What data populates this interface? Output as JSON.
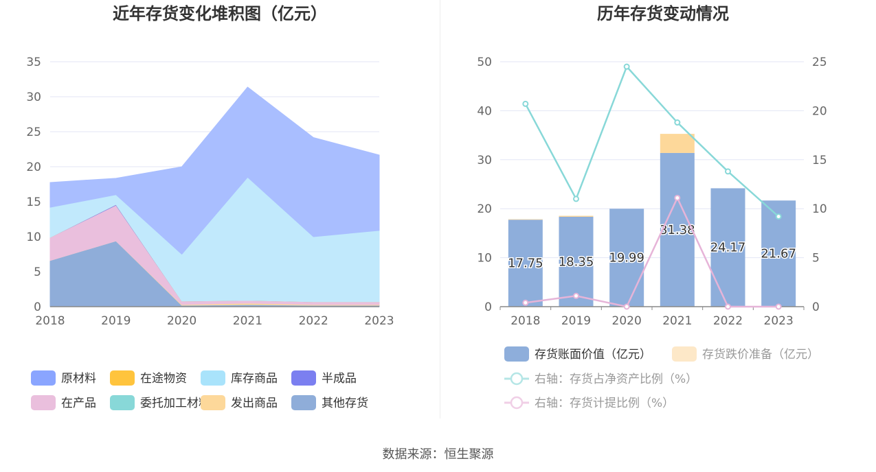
{
  "left_chart": {
    "title": "近年存货变化堆积图（亿元）",
    "chart_data": {
      "type": "area",
      "stacked": true,
      "x": [
        "2018",
        "2019",
        "2020",
        "2021",
        "2022",
        "2023"
      ],
      "ylim": [
        0,
        35
      ],
      "yticks": [
        0,
        5,
        10,
        15,
        20,
        25,
        30,
        35
      ],
      "series": [
        {
          "name": "其他存货",
          "color": "#8fadd9",
          "values": [
            6.6,
            9.4,
            0.2,
            0.3,
            0.2,
            0.2
          ]
        },
        {
          "name": "委托加工材料",
          "color": "#88d8d8",
          "values": [
            0,
            0,
            0,
            0,
            0,
            0
          ]
        },
        {
          "name": "发出商品",
          "color": "#fdd89a",
          "values": [
            0,
            0,
            0.1,
            0.2,
            0.1,
            0.1
          ]
        },
        {
          "name": "在产品",
          "color": "#eabfdd",
          "values": [
            3.3,
            5.1,
            0.5,
            0.4,
            0.4,
            0.4
          ]
        },
        {
          "name": "半成品",
          "color": "#7b7ff0",
          "values": [
            0,
            0.1,
            0,
            0,
            0,
            0
          ]
        },
        {
          "name": "在途物资",
          "color": "#ffc43d",
          "values": [
            0,
            0,
            0,
            0,
            0,
            0
          ]
        },
        {
          "name": "库存商品",
          "color": "#c1e9fc",
          "values": [
            4.3,
            1.4,
            6.7,
            17.6,
            9.3,
            10.2
          ]
        },
        {
          "name": "原材料",
          "color": "#a9beff",
          "values": [
            3.55,
            2.35,
            12.49,
            12.88,
            14.17,
            10.77
          ]
        }
      ],
      "legend": [
        {
          "label": "原材料",
          "color": "#8aa5ff"
        },
        {
          "label": "在途物资",
          "color": "#ffc43d"
        },
        {
          "label": "库存商品",
          "color": "#a9e3fb"
        },
        {
          "label": "半成品",
          "color": "#7b7ff0"
        },
        {
          "label": "在产品",
          "color": "#eabfdd"
        },
        {
          "label": "委托加工材料",
          "color": "#88d8d8"
        },
        {
          "label": "发出商品",
          "color": "#fdd89a"
        },
        {
          "label": "其他存货",
          "color": "#8fadd9"
        }
      ],
      "legend_position": "bottom"
    }
  },
  "right_chart": {
    "title": "历年存货变动情况",
    "chart_data": {
      "type": "bar",
      "categories": [
        "2018",
        "2019",
        "2020",
        "2021",
        "2022",
        "2023"
      ],
      "ylim": [
        0,
        50
      ],
      "yticks": [
        0,
        10,
        20,
        30,
        40,
        50
      ],
      "y2lim": [
        0,
        25
      ],
      "y2ticks": [
        0,
        5,
        10,
        15,
        20,
        25
      ],
      "series": [
        {
          "name": "存货账面价值（亿元）",
          "type": "bar",
          "stack": "a",
          "color": "#8eaedb",
          "values": [
            17.75,
            18.35,
            19.99,
            31.38,
            24.17,
            21.67
          ],
          "labels": [
            "17.75",
            "18.35",
            "19.99",
            "31.38",
            "24.17",
            "21.67"
          ]
        },
        {
          "name": "存货跌价准备（亿元）",
          "type": "bar",
          "stack": "a",
          "color": "#fdd89a",
          "values": [
            0.1,
            0.2,
            0.0,
            3.9,
            0.0,
            0.0
          ]
        },
        {
          "name": "右轴：存货占净资产比例（%）",
          "type": "line",
          "axis": "right",
          "color": "#88d8d8",
          "values": [
            20.7,
            11.0,
            24.5,
            18.8,
            13.8,
            9.2
          ]
        },
        {
          "name": "右轴：存货计提比例（%）",
          "type": "line",
          "axis": "right",
          "color": "#e6b4d8",
          "values": [
            0.4,
            1.1,
            0.0,
            11.1,
            0.0,
            0.0
          ]
        }
      ],
      "legend": [
        {
          "label": "存货账面价值（亿元）",
          "kind": "bar",
          "color": "#8eaedb",
          "text_color": "#333333"
        },
        {
          "label": "存货跌价准备（亿元）",
          "kind": "bar",
          "color": "#fde8c8",
          "text_color": "#999999"
        },
        {
          "label": "右轴：存货占净资产比例（%）",
          "kind": "line",
          "color": "#b5e6e6",
          "text_color": "#999999"
        },
        {
          "label": "右轴：存货计提比例（%）",
          "kind": "line",
          "color": "#f0cfe6",
          "text_color": "#999999"
        }
      ],
      "legend_position": "bottom"
    }
  },
  "source_text": "数据来源：恒生聚源"
}
